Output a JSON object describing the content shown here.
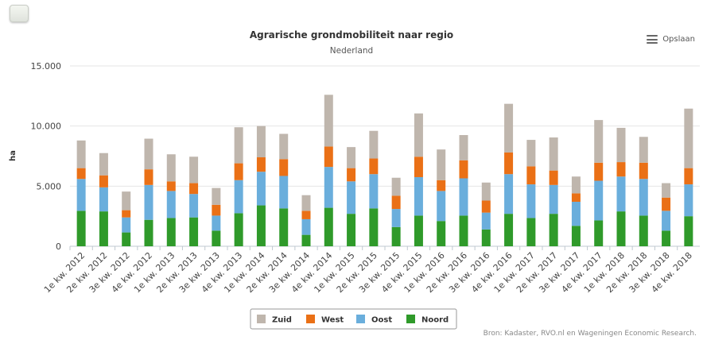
{
  "controls": {
    "save_label": "Opslaan"
  },
  "source": "Bron: Kadaster, RVO.nl en Wageningen Economic Research.",
  "chart_data": {
    "type": "bar",
    "stacked": true,
    "title": "Agrarische grondmobiliteit naar regio",
    "subtitle": "Nederland",
    "xlabel": "",
    "ylabel": "ha",
    "ylim": [
      0,
      15000
    ],
    "yticks": [
      "0",
      "5.000",
      "10.000",
      "15.000"
    ],
    "legend_position": "bottom-center",
    "categories": [
      "1e kw. 2012",
      "2e kw. 2012",
      "3e kw. 2012",
      "4e kw. 2012",
      "1e kw. 2013",
      "2e kw. 2013",
      "3e kw. 2013",
      "4e kw. 2013",
      "1e kw. 2014",
      "2e kw. 2014",
      "3e kw. 2014",
      "4e kw. 2014",
      "1e kw. 2015",
      "2e kw. 2015",
      "3e kw. 2015",
      "4e kw. 2015",
      "1e kw. 2016",
      "2e kw. 2016",
      "3e kw. 2016",
      "4e kw. 2016",
      "1e kw. 2017",
      "2e kw. 2017",
      "3e kw. 2017",
      "4e kw. 2017",
      "1e kw. 2018",
      "2e kw. 2018",
      "3e kw. 2018",
      "4e kw. 2018"
    ],
    "series": [
      {
        "name": "Noord",
        "color": "#2f9a2a",
        "values": [
          2950,
          2900,
          1150,
          2200,
          2350,
          2400,
          1300,
          2750,
          3400,
          3150,
          950,
          3200,
          2700,
          3150,
          1600,
          2550,
          2100,
          2550,
          1400,
          2700,
          2350,
          2700,
          1700,
          2150,
          2900,
          2550,
          1300,
          2500
        ]
      },
      {
        "name": "Oost",
        "color": "#6aaedc",
        "values": [
          2650,
          2000,
          1250,
          2900,
          2250,
          1950,
          1250,
          2750,
          2800,
          2700,
          1300,
          3400,
          2700,
          2850,
          1500,
          3200,
          2500,
          3100,
          1400,
          3300,
          2800,
          2400,
          2000,
          3300,
          2900,
          3050,
          1650,
          2650
        ]
      },
      {
        "name": "West",
        "color": "#ea7016",
        "values": [
          900,
          1000,
          600,
          1300,
          800,
          900,
          900,
          1400,
          1200,
          1400,
          700,
          1700,
          1100,
          1300,
          1100,
          1700,
          900,
          1500,
          1000,
          1800,
          1500,
          1200,
          700,
          1500,
          1200,
          1350,
          1100,
          1350
        ]
      },
      {
        "name": "Zuid",
        "color": "#bfb6ad",
        "values": [
          2300,
          1850,
          1550,
          2550,
          2250,
          2200,
          1400,
          3000,
          2600,
          2100,
          1300,
          4300,
          1750,
          2300,
          1500,
          3600,
          2550,
          2100,
          1500,
          4050,
          2200,
          2750,
          1400,
          3550,
          2850,
          2150,
          1200,
          4950
        ]
      }
    ]
  }
}
